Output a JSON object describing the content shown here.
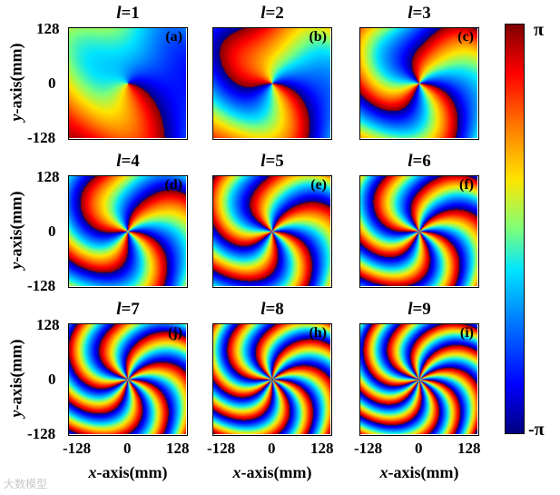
{
  "chart_data": {
    "type": "heatmap",
    "description_panels": [
      {
        "letter": "(a)",
        "l": "1",
        "prefix": "l",
        "title": "l=1",
        "topological_charge": 1
      },
      {
        "letter": "(b)",
        "l": "2",
        "prefix": "l",
        "title": "l=2",
        "topological_charge": 2
      },
      {
        "letter": "(c)",
        "l": "3",
        "prefix": "l",
        "title": "l=3",
        "topological_charge": 3
      },
      {
        "letter": "(d)",
        "l": "4",
        "prefix": "l",
        "title": "l=4",
        "topological_charge": 4
      },
      {
        "letter": "(e)",
        "l": "5",
        "prefix": "l",
        "title": "l=5",
        "topological_charge": 5
      },
      {
        "letter": "(f)",
        "l": "6",
        "prefix": "l",
        "title": "l=6",
        "topological_charge": 6
      },
      {
        "letter": "(j)",
        "l": "7",
        "prefix": "l",
        "title": "l=7",
        "topological_charge": 7
      },
      {
        "letter": "(h)",
        "l": "8",
        "prefix": "l",
        "title": "l=8",
        "topological_charge": 8
      },
      {
        "letter": "(i)",
        "l": "9",
        "prefix": "l",
        "title": "l=9",
        "topological_charge": 9
      }
    ],
    "y_ticks": [
      "128",
      "0",
      "-128"
    ],
    "x_ticks": [
      "-128",
      "0",
      "128"
    ],
    "xlabel_var": "x",
    "xlabel_rest": "-axis(mm)",
    "ylabel_var": "y",
    "ylabel_rest": "-axis(mm)",
    "xlim": [
      -128,
      128
    ],
    "ylim": [
      -128,
      128
    ],
    "colorbar": {
      "max_label": "π",
      "min_label": "-π",
      "range": [
        -3.1416,
        3.1416
      ],
      "colormap": "jet"
    }
  },
  "watermark": "大数模型"
}
